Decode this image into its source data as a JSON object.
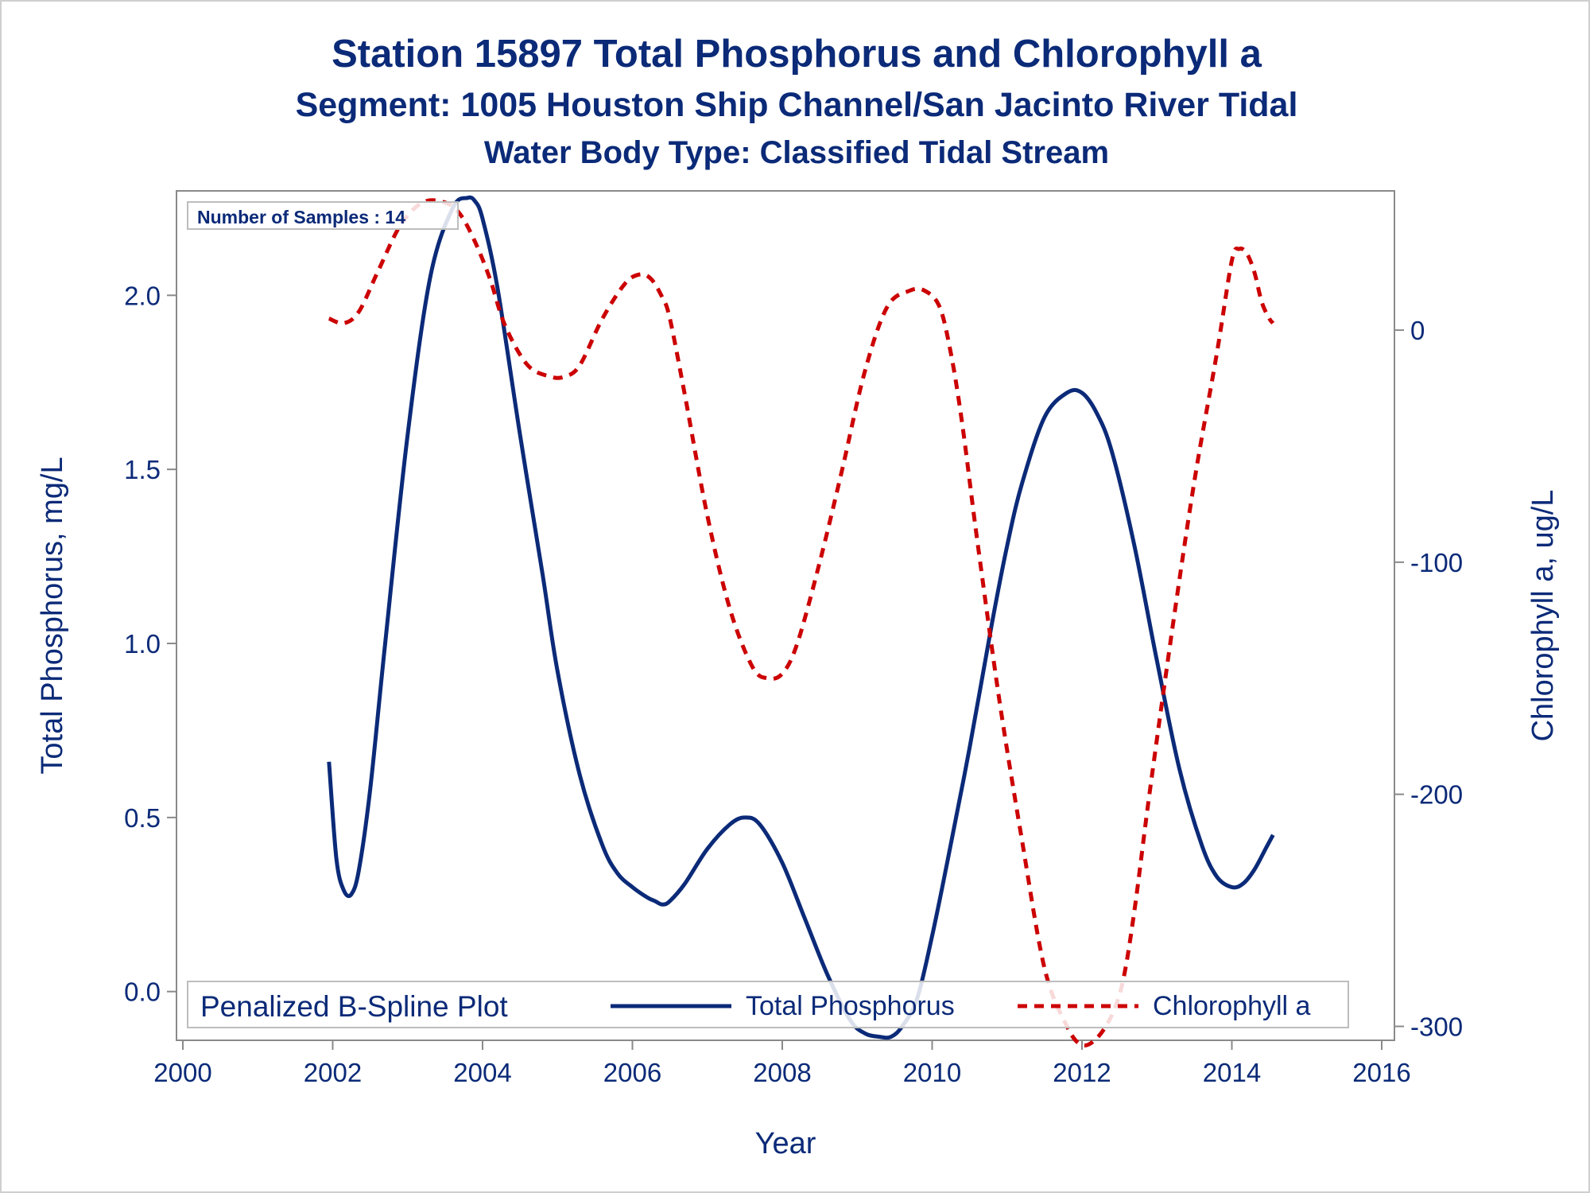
{
  "titles": {
    "line1": "Station 15897  Total Phosphorus and Chlorophyll a",
    "line2": "Segment: 1005  Houston Ship Channel/San Jacinto River Tidal",
    "line3": "Water Body Type: Classified Tidal Stream"
  },
  "inset": {
    "text": "Number of Samples : 14"
  },
  "legend": {
    "title": "Penalized B-Spline Plot",
    "series1": "Total Phosphorus",
    "series2": "Chlorophyll a"
  },
  "chart_data": {
    "type": "line",
    "xlabel": "Year",
    "ylabel_left": "Total Phosphorus, mg/L",
    "ylabel_right": "Chlorophyll a, ug/L",
    "xlim": [
      2000,
      2016
    ],
    "xticks": [
      2000,
      2002,
      2004,
      2006,
      2008,
      2010,
      2012,
      2014,
      2016
    ],
    "ylim_left": [
      -0.14,
      2.3
    ],
    "yticks_left": [
      "0.0",
      "0.5",
      "1.0",
      "1.5",
      "2.0"
    ],
    "ylim_right": [
      -306,
      60
    ],
    "yticks_right": [
      "0",
      "-100",
      "-200",
      "-300"
    ],
    "grid": false,
    "legend_position": "bottom",
    "series": [
      {
        "name": "Total Phosphorus",
        "axis": "left",
        "color": "#0b2a78",
        "style": "solid",
        "x": [
          2001.95,
          2002.05,
          2002.15,
          2002.25,
          2002.35,
          2002.5,
          2002.7,
          2003.0,
          2003.3,
          2003.6,
          2003.8,
          2003.9,
          2004.0,
          2004.2,
          2004.5,
          2004.8,
          2005.0,
          2005.3,
          2005.6,
          2005.8,
          2006.0,
          2006.2,
          2006.3,
          2006.4,
          2006.5,
          2006.7,
          2007.0,
          2007.3,
          2007.5,
          2007.7,
          2008.0,
          2008.3,
          2008.6,
          2008.9,
          2009.1,
          2009.3,
          2009.45,
          2009.6,
          2009.8,
          2010.0,
          2010.2,
          2010.5,
          2010.8,
          2011.0,
          2011.2,
          2011.5,
          2011.8,
          2012.0,
          2012.2,
          2012.4,
          2012.7,
          2013.0,
          2013.3,
          2013.6,
          2013.8,
          2014.0,
          2014.15,
          2014.3,
          2014.45,
          2014.55
        ],
        "y": [
          0.66,
          0.38,
          0.29,
          0.28,
          0.35,
          0.58,
          1.0,
          1.6,
          2.05,
          2.25,
          2.28,
          2.27,
          2.22,
          2.02,
          1.6,
          1.2,
          0.92,
          0.62,
          0.42,
          0.34,
          0.3,
          0.27,
          0.26,
          0.25,
          0.26,
          0.31,
          0.41,
          0.48,
          0.5,
          0.48,
          0.37,
          0.21,
          0.05,
          -0.08,
          -0.12,
          -0.13,
          -0.13,
          -0.1,
          -0.02,
          0.16,
          0.37,
          0.7,
          1.06,
          1.28,
          1.46,
          1.65,
          1.72,
          1.72,
          1.66,
          1.55,
          1.28,
          0.95,
          0.64,
          0.42,
          0.33,
          0.3,
          0.31,
          0.35,
          0.41,
          0.45
        ]
      },
      {
        "name": "Chlorophyll a",
        "axis": "right",
        "color": "#cc0000",
        "style": "dashed",
        "x": [
          2001.95,
          2002.15,
          2002.35,
          2002.6,
          2002.9,
          2003.2,
          2003.5,
          2003.7,
          2003.9,
          2004.1,
          2004.3,
          2004.6,
          2004.9,
          2005.1,
          2005.3,
          2005.6,
          2005.9,
          2006.1,
          2006.25,
          2006.4,
          2006.5,
          2006.7,
          2007.0,
          2007.3,
          2007.6,
          2007.8,
          2008.0,
          2008.2,
          2008.5,
          2008.8,
          2009.1,
          2009.4,
          2009.7,
          2009.9,
          2010.1,
          2010.25,
          2010.4,
          2010.6,
          2010.9,
          2011.2,
          2011.5,
          2011.8,
          2012.0,
          2012.2,
          2012.4,
          2012.55,
          2012.7,
          2012.9,
          2013.2,
          2013.5,
          2013.8,
          2014.0,
          2014.1,
          2014.2,
          2014.3,
          2014.4,
          2014.5,
          2014.55
        ],
        "y": [
          5,
          3,
          8,
          25,
          45,
          55,
          55,
          50,
          38,
          22,
          2,
          -15,
          -20,
          -20,
          -15,
          5,
          20,
          24,
          22,
          14,
          5,
          -28,
          -80,
          -120,
          -145,
          -150,
          -148,
          -135,
          -100,
          -60,
          -18,
          10,
          17,
          17,
          10,
          -10,
          -40,
          -90,
          -160,
          -220,
          -275,
          -300,
          -308,
          -305,
          -295,
          -280,
          -250,
          -200,
          -130,
          -65,
          -10,
          30,
          35,
          33,
          25,
          12,
          5,
          3
        ]
      }
    ]
  }
}
